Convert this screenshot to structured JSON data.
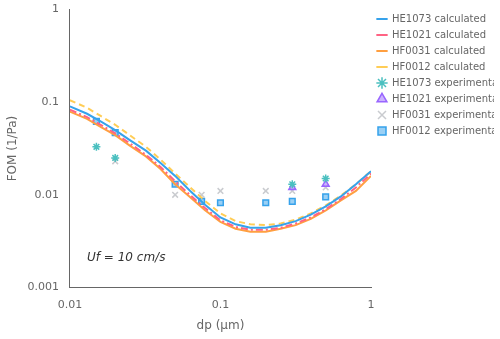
{
  "chart_data": {
    "type": "line",
    "xlabel": "dp (μm)",
    "ylabel": "FOM (1/Pa)",
    "log": true,
    "xlim": [
      0.01,
      1.0
    ],
    "ylim": [
      0.001,
      1.0
    ],
    "xticks": [
      0.01,
      0.1,
      1
    ],
    "yticks": [
      0.001,
      0.01,
      0.1,
      1
    ],
    "grid": false,
    "legend": "upper right",
    "annotations": [
      {
        "text": "Uf = 10 cm/s",
        "x": 0.013,
        "y": 0.0018
      }
    ],
    "series": [
      {
        "name": "HE1073 calculated",
        "type": "line",
        "line_style": "solid",
        "x": [
          0.01,
          0.013,
          0.016,
          0.02,
          0.025,
          0.032,
          0.04,
          0.05,
          0.063,
          0.079,
          0.1,
          0.126,
          0.158,
          0.2,
          0.251,
          0.316,
          0.398,
          0.501,
          0.631,
          0.794,
          1.0
        ],
        "values": [
          0.09,
          0.075,
          0.062,
          0.05,
          0.039,
          0.03,
          0.022,
          0.016,
          0.011,
          0.0078,
          0.0057,
          0.0048,
          0.0044,
          0.0044,
          0.0047,
          0.0052,
          0.0061,
          0.0075,
          0.0096,
          0.013,
          0.018
        ]
      },
      {
        "name": "HE1021 calculated",
        "type": "line",
        "line_style": "dashdot",
        "x": [
          0.01,
          0.013,
          0.016,
          0.02,
          0.025,
          0.032,
          0.04,
          0.05,
          0.063,
          0.079,
          0.1,
          0.126,
          0.158,
          0.2,
          0.251,
          0.316,
          0.398,
          0.501,
          0.631,
          0.794,
          1.0
        ],
        "values": [
          0.083,
          0.069,
          0.057,
          0.046,
          0.036,
          0.027,
          0.02,
          0.014,
          0.0099,
          0.0072,
          0.0053,
          0.0045,
          0.0042,
          0.0042,
          0.0044,
          0.0049,
          0.0057,
          0.007,
          0.009,
          0.012,
          0.017
        ]
      },
      {
        "name": "HF0031 calculated",
        "type": "line",
        "line_style": "solid",
        "x": [
          0.01,
          0.013,
          0.016,
          0.02,
          0.025,
          0.032,
          0.04,
          0.05,
          0.063,
          0.079,
          0.1,
          0.126,
          0.158,
          0.2,
          0.251,
          0.316,
          0.398,
          0.501,
          0.631,
          0.794,
          1.0
        ],
        "values": [
          0.079,
          0.066,
          0.054,
          0.044,
          0.034,
          0.026,
          0.019,
          0.013,
          0.0094,
          0.0068,
          0.0051,
          0.0043,
          0.004,
          0.004,
          0.0043,
          0.0047,
          0.0055,
          0.0068,
          0.0087,
          0.011,
          0.016
        ]
      },
      {
        "name": "HF0012 calculated",
        "type": "line",
        "line_style": "dashed",
        "x": [
          0.01,
          0.013,
          0.016,
          0.02,
          0.025,
          0.032,
          0.04,
          0.05,
          0.063,
          0.079,
          0.1,
          0.126,
          0.158,
          0.2,
          0.251,
          0.316,
          0.398,
          0.501,
          0.631,
          0.794,
          1.0
        ],
        "values": [
          0.105,
          0.087,
          0.071,
          0.057,
          0.044,
          0.033,
          0.024,
          0.017,
          0.012,
          0.0086,
          0.0063,
          0.0052,
          0.0048,
          0.0047,
          0.0049,
          0.0054,
          0.0063,
          0.0077,
          0.0098,
          0.013,
          0.018
        ]
      },
      {
        "name": "HE1073 experimental",
        "type": "scatter",
        "marker": "star",
        "x": [
          0.015,
          0.02,
          0.3,
          0.5
        ],
        "values": [
          0.033,
          0.025,
          0.013,
          0.015
        ]
      },
      {
        "name": "HE1021 experimental",
        "type": "scatter",
        "marker": "triangle",
        "x": [
          0.3,
          0.5
        ],
        "values": [
          0.012,
          0.013
        ]
      },
      {
        "name": "HF0031 experimental",
        "type": "scatter",
        "marker": "x",
        "x": [
          0.02,
          0.05,
          0.075,
          0.1,
          0.2,
          0.3,
          0.5
        ],
        "values": [
          0.023,
          0.01,
          0.01,
          0.011,
          0.011,
          0.011,
          0.012
        ]
      },
      {
        "name": "HF0012 experimental",
        "type": "scatter",
        "marker": "square",
        "x": [
          0.015,
          0.02,
          0.05,
          0.075,
          0.1,
          0.2,
          0.3,
          0.5
        ],
        "values": [
          0.062,
          0.047,
          0.013,
          0.0085,
          0.0082,
          0.0082,
          0.0085,
          0.0095
        ]
      }
    ]
  }
}
